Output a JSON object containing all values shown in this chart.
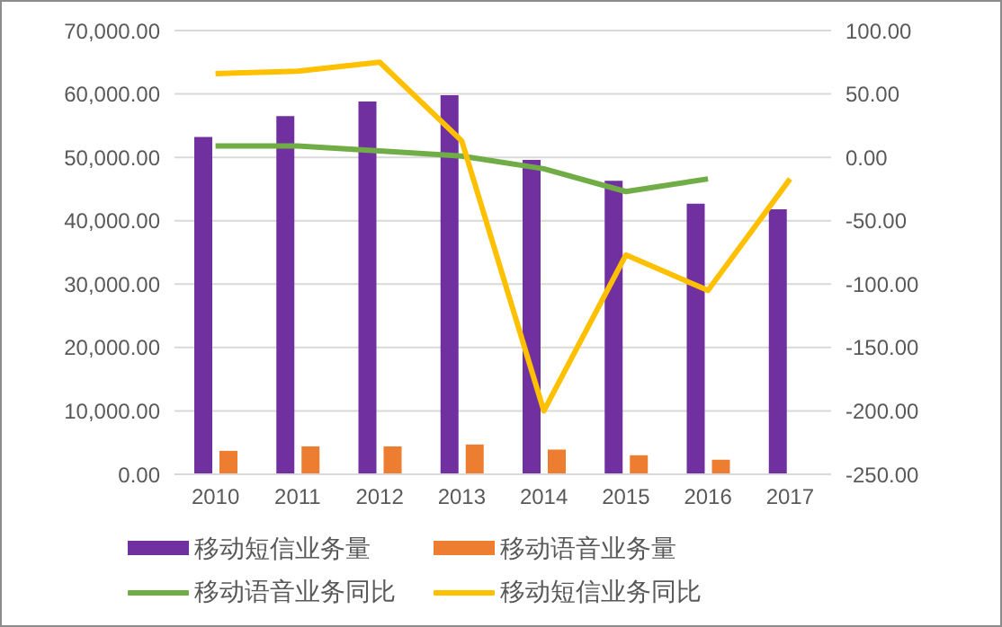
{
  "chart_data": {
    "type": "bar",
    "categories": [
      "2010",
      "2011",
      "2012",
      "2013",
      "2014",
      "2015",
      "2016",
      "2017"
    ],
    "series": [
      {
        "name": "移动短信业务量",
        "color": "#7030a0",
        "values": [
          53200,
          56500,
          58800,
          59800,
          49600,
          46300,
          42700,
          41800
        ]
      },
      {
        "name": "移动语音业务量",
        "color": "#ed7d31",
        "values": [
          3700,
          4400,
          4400,
          4700,
          3900,
          3000,
          2300,
          null
        ]
      },
      {
        "name": "移动语音业务同比",
        "type": "line",
        "axis": "y2",
        "color": "#70ad47",
        "values": [
          9,
          9,
          5,
          1,
          -9,
          -27,
          -17,
          null
        ]
      },
      {
        "name": "移动短信业务同比",
        "type": "line",
        "axis": "y2",
        "color": "#ffc000",
        "values": [
          66,
          68,
          75,
          13,
          -200,
          -77,
          -105,
          -17
        ]
      }
    ],
    "ylim": [
      0,
      70000
    ],
    "yticks": [
      {
        "value": 0,
        "label": "0.00"
      },
      {
        "value": 10000,
        "label": "10,000.00"
      },
      {
        "value": 20000,
        "label": "20,000.00"
      },
      {
        "value": 30000,
        "label": "30,000.00"
      },
      {
        "value": 40000,
        "label": "40,000.00"
      },
      {
        "value": 50000,
        "label": "50,000.00"
      },
      {
        "value": 60000,
        "label": "60,000.00"
      },
      {
        "value": 70000,
        "label": "70,000.00"
      }
    ],
    "y2lim": [
      -250,
      100
    ],
    "y2ticks": [
      {
        "value": -250,
        "label": "-250.00"
      },
      {
        "value": -200,
        "label": "-200.00"
      },
      {
        "value": -150,
        "label": "-150.00"
      },
      {
        "value": -100,
        "label": "-100.00"
      },
      {
        "value": -50,
        "label": "-50.00"
      },
      {
        "value": 0,
        "label": "0.00"
      },
      {
        "value": 50,
        "label": "50.00"
      },
      {
        "value": 100,
        "label": "100.00"
      }
    ],
    "grid": "y",
    "legend": "bottom",
    "marker": "none"
  }
}
